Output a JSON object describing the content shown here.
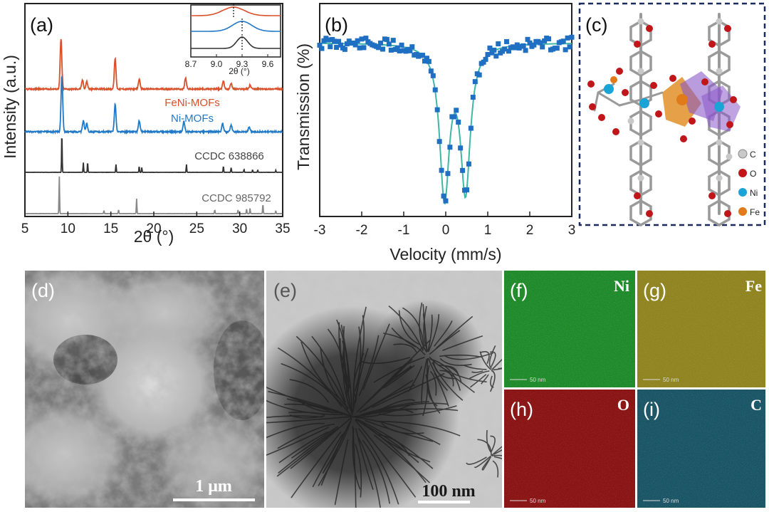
{
  "figure": {
    "panel_labels": [
      "(a)",
      "(b)",
      "(c)",
      "(d)",
      "(e)",
      "(f)",
      "(g)",
      "(h)",
      "(i)"
    ],
    "colors": {
      "feni": "#d9502a",
      "ni": "#1f78c8",
      "ccdc638866": "#333333",
      "ccdc985792": "#888888",
      "mossbauer_points": "#1f6fc2",
      "mossbauer_fit": "#3fb6a8",
      "map_ni": "#1f8a2a",
      "map_fe": "#8f8420",
      "map_o": "#8a1414",
      "map_c": "#1a5566",
      "frame_c": "#1b2a5c"
    }
  },
  "chart_data": [
    {
      "type": "line",
      "panel": "(a)",
      "xlabel": "2θ (°)",
      "ylabel": "Intensity (a.u.)",
      "xlim": [
        5,
        35
      ],
      "xticks": [
        "5",
        "10",
        "15",
        "20",
        "25",
        "30",
        "35"
      ],
      "series": [
        {
          "name": "FeNi-MOFs",
          "peaks": [
            [
              9.2,
              1.0
            ],
            [
              11.7,
              0.18
            ],
            [
              12.2,
              0.15
            ],
            [
              15.5,
              0.62
            ],
            [
              18.3,
              0.2
            ],
            [
              23.7,
              0.22
            ],
            [
              28.1,
              0.16
            ],
            [
              29.0,
              0.12
            ],
            [
              31.2,
              0.08
            ]
          ]
        },
        {
          "name": "Ni-MOFs",
          "peaks": [
            [
              9.3,
              1.0
            ],
            [
              11.8,
              0.2
            ],
            [
              12.2,
              0.15
            ],
            [
              15.5,
              0.5
            ],
            [
              18.3,
              0.2
            ],
            [
              23.5,
              0.18
            ],
            [
              28.0,
              0.15
            ],
            [
              29.0,
              0.12
            ],
            [
              31.1,
              0.08
            ]
          ]
        },
        {
          "name": "CCDC 638866",
          "peaks": [
            [
              9.3,
              1.0
            ],
            [
              11.8,
              0.25
            ],
            [
              12.3,
              0.25
            ],
            [
              15.6,
              0.2
            ],
            [
              18.3,
              0.15
            ],
            [
              18.6,
              0.12
            ],
            [
              23.8,
              0.2
            ],
            [
              28.1,
              0.15
            ],
            [
              29.0,
              0.12
            ],
            [
              30.5,
              0.08
            ],
            [
              31.5,
              0.06
            ],
            [
              32.1,
              0.06
            ],
            [
              34.2,
              0.05
            ]
          ]
        },
        {
          "name": "CCDC 985792",
          "peaks": [
            [
              9.0,
              1.0
            ],
            [
              14.2,
              0.08
            ],
            [
              15.9,
              0.1
            ],
            [
              18.0,
              0.4
            ],
            [
              27.1,
              0.1
            ],
            [
              29.8,
              0.1
            ],
            [
              30.8,
              0.12
            ],
            [
              31.2,
              0.14
            ],
            [
              32.7,
              0.25
            ],
            [
              34.2,
              0.08
            ]
          ]
        }
      ],
      "inset": {
        "xlim": [
          8.7,
          9.75
        ],
        "xticks": [
          "8.7",
          "9.0",
          "9.3",
          "9.6"
        ],
        "xlabel": "2θ (°)",
        "peak_positions": [
          9.2,
          9.3,
          9.3
        ]
      }
    },
    {
      "type": "scatter",
      "panel": "(b)",
      "xlabel": "Velocity (mm/s)",
      "ylabel": "Transmission (%)",
      "xlim": [
        -3,
        3
      ],
      "xticks": [
        "-3",
        "-2",
        "-1",
        "0",
        "1",
        "2",
        "3"
      ],
      "doublet": {
        "centers": [
          -0.03,
          0.47
        ],
        "width": 0.28,
        "depth": [
          0.92,
          0.88
        ]
      }
    },
    {
      "type": "diagram",
      "panel": "(c)",
      "legend": [
        {
          "label": "C",
          "color": "#c8c8c8"
        },
        {
          "label": "O",
          "color": "#c0161a"
        },
        {
          "label": "Ni",
          "color": "#1aa3d6"
        },
        {
          "label": "Fe",
          "color": "#e07a1a"
        }
      ]
    }
  ],
  "images": {
    "sem": {
      "scale_bar": "1 μm"
    },
    "tem": {
      "scale_bar": "100 nm"
    },
    "maps": [
      {
        "panel": "(f)",
        "element": "Ni",
        "scale": "50 nm"
      },
      {
        "panel": "(g)",
        "element": "Fe",
        "scale": "50 nm"
      },
      {
        "panel": "(h)",
        "element": "O",
        "scale": "50 nm"
      },
      {
        "panel": "(i)",
        "element": "C",
        "scale": "50 nm"
      }
    ]
  }
}
